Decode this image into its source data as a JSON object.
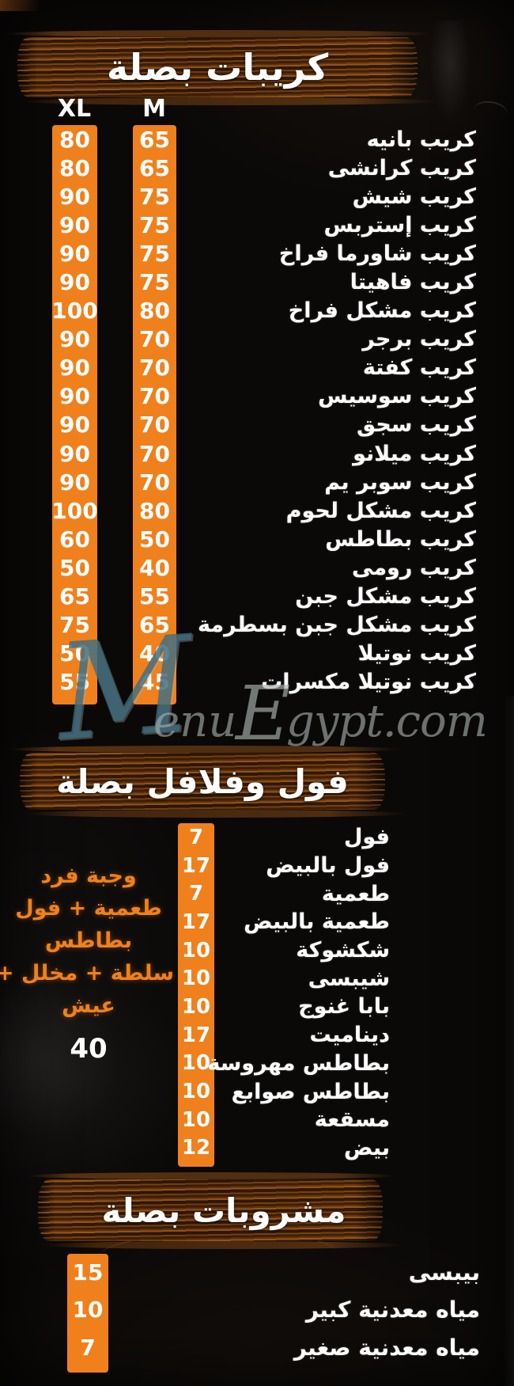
{
  "colors": {
    "background": "#0B0908",
    "accent_orange": "#F0801C",
    "brush_brown": "#6E3A0F",
    "text_white": "#FFFFFF",
    "watermark_teal": "#3E6B7C",
    "watermark_gray": "#A9B2AF"
  },
  "watermark": {
    "m": "M",
    "part1": "enu",
    "e": "E",
    "part2": "gypt.com"
  },
  "sections": [
    {
      "id": "crepes",
      "title": "كريبات بصلة",
      "columns": {
        "xl": "XL",
        "m": "M"
      },
      "items": [
        {
          "name": "كريب بانيه",
          "xl": "80",
          "m": "65"
        },
        {
          "name": "كريب كرانشى",
          "xl": "80",
          "m": "65"
        },
        {
          "name": "كريب شيش",
          "xl": "90",
          "m": "75"
        },
        {
          "name": "كريب إستربس",
          "xl": "90",
          "m": "75"
        },
        {
          "name": "كريب شاورما فراخ",
          "xl": "90",
          "m": "75"
        },
        {
          "name": "كريب فاهيتا",
          "xl": "90",
          "m": "75"
        },
        {
          "name": "كريب مشكل فراخ",
          "xl": "100",
          "m": "80"
        },
        {
          "name": "كريب برجر",
          "xl": "90",
          "m": "70"
        },
        {
          "name": "كريب كفتة",
          "xl": "90",
          "m": "70"
        },
        {
          "name": "كريب سوسيس",
          "xl": "90",
          "m": "70"
        },
        {
          "name": "كريب سجق",
          "xl": "90",
          "m": "70"
        },
        {
          "name": "كريب ميلانو",
          "xl": "90",
          "m": "70"
        },
        {
          "name": "كريب سوبر يم",
          "xl": "90",
          "m": "70"
        },
        {
          "name": "كريب مشكل لحوم",
          "xl": "100",
          "m": "80"
        },
        {
          "name": "كريب بطاطس",
          "xl": "60",
          "m": "50"
        },
        {
          "name": "كريب رومى",
          "xl": "50",
          "m": "40"
        },
        {
          "name": "كريب مشكل جبن",
          "xl": "65",
          "m": "55"
        },
        {
          "name": "كريب مشكل جبن بسطرمة",
          "xl": "75",
          "m": "65"
        },
        {
          "name": "كريب نوتيلا",
          "xl": "50",
          "m": "40"
        },
        {
          "name": "كريب نوتيلا مكسرات",
          "xl": "55",
          "m": "45"
        }
      ]
    },
    {
      "id": "foul-falafel",
      "title": "فول وفلافل بصلة",
      "combo": {
        "lines": [
          "وجبة فرد",
          "طعمية + فول",
          "بطاطس",
          "سلطة + مخلل +",
          "عيش"
        ],
        "price": "40"
      },
      "items": [
        {
          "name": "فول",
          "price": "7"
        },
        {
          "name": "فول بالبيض",
          "price": "17"
        },
        {
          "name": "طعمية",
          "price": "7"
        },
        {
          "name": "طعمية بالبيض",
          "price": "17"
        },
        {
          "name": "شكشوكة",
          "price": "10"
        },
        {
          "name": "شيبسى",
          "price": "10"
        },
        {
          "name": "بابا غنوج",
          "price": "10"
        },
        {
          "name": "ديناميت",
          "price": "17"
        },
        {
          "name": "بطاطس مهروسة",
          "price": "10"
        },
        {
          "name": "بطاطس صوابع",
          "price": "10"
        },
        {
          "name": "مسقعة",
          "price": "10"
        },
        {
          "name": "بيض",
          "price": "12"
        }
      ]
    },
    {
      "id": "drinks",
      "title": "مشروبات بصلة",
      "items": [
        {
          "name": "بيبسى",
          "price": "15"
        },
        {
          "name": "مياه معدنية كبير",
          "price": "10"
        },
        {
          "name": "مياه معدنية صغير",
          "price": "7"
        }
      ]
    }
  ]
}
